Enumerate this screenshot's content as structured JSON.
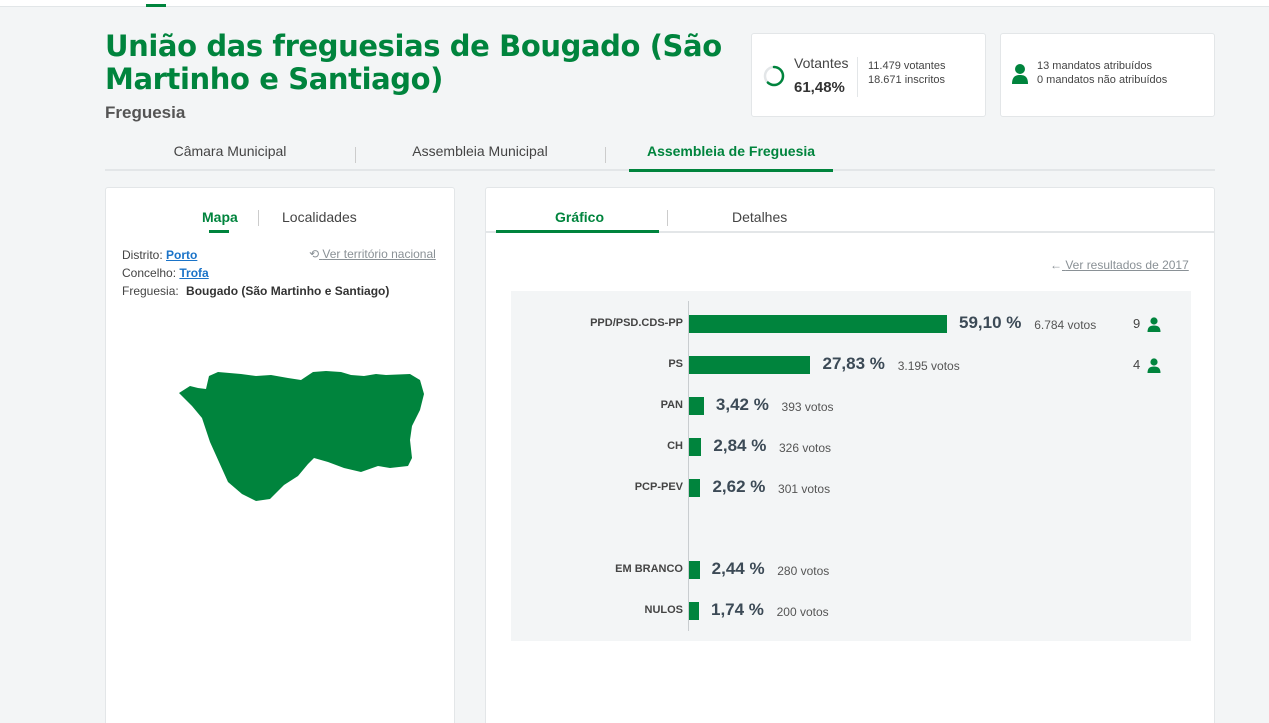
{
  "header": {
    "title": "União das freguesias de Bougado (São Martinho e Santiago)",
    "subtitle": "Freguesia"
  },
  "stats": {
    "votes_label": "Votantes",
    "votes_pct": "61,48%",
    "votantes": "11.479 votantes",
    "inscritos": "18.671 inscritos",
    "mandatos_atribuidos": "13 mandatos atribuídos",
    "mandatos_nao_atribuidos": "0 mandatos não atribuídos"
  },
  "main_tabs": [
    {
      "label": "Câmara Municipal"
    },
    {
      "label": "Assembleia Municipal"
    },
    {
      "label": "Assembleia de Freguesia"
    }
  ],
  "left_panel": {
    "tabs": [
      {
        "label": "Mapa"
      },
      {
        "label": "Localidades"
      }
    ],
    "distrito_label": "Distrito:",
    "distrito_value": "Porto",
    "concelho_label": "Concelho:",
    "concelho_value": "Trofa",
    "freguesia_label": "Freguesia:",
    "freguesia_value": "Bougado (São Martinho e Santiago)",
    "national_link": "Ver território nacional"
  },
  "right_panel": {
    "tabs": [
      {
        "label": "Gráfico"
      },
      {
        "label": "Detalhes"
      }
    ],
    "previous_results_link": "Ver resultados de 2017"
  },
  "colors": {
    "accent": "#00843d",
    "link": "#1a73c8"
  },
  "chart_data": {
    "type": "bar",
    "orientation": "horizontal",
    "categories": [
      "PPD/PSD.CDS-PP",
      "PS",
      "PAN",
      "CH",
      "PCP-PEV",
      "EM BRANCO",
      "NULOS"
    ],
    "values": [
      59.1,
      27.83,
      3.42,
      2.84,
      2.62,
      2.44,
      1.74
    ],
    "pct_labels": [
      "59,10 %",
      "27,83 %",
      "3,42 %",
      "2,84 %",
      "2,62 %",
      "2,44 %",
      "1,74 %"
    ],
    "votes": [
      "6.784 votos",
      "3.195 votos",
      "393 votos",
      "326 votos",
      "301 votos",
      "280 votos",
      "200 votos"
    ],
    "seats": [
      "9",
      "4",
      "",
      "",
      "",
      "",
      ""
    ],
    "unit": "%"
  }
}
